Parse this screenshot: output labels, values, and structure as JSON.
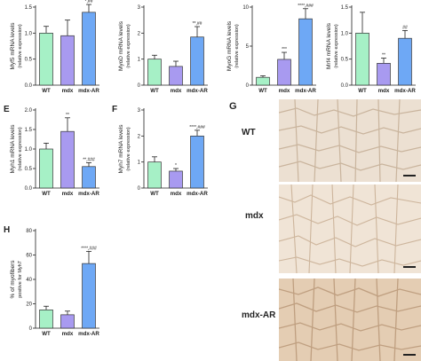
{
  "chart_data": [
    {
      "id": "A",
      "panel_letter": "",
      "type": "bar",
      "categories": [
        "WT",
        "mdx",
        "mdx-AR"
      ],
      "values": [
        1.0,
        0.95,
        1.4
      ],
      "errors": [
        0.13,
        0.3,
        0.15
      ],
      "ylabel": "Myf5 mRNA levels",
      "ylabel2": "(relative expression)",
      "ylim": [
        0,
        1.5
      ],
      "yticks": [
        "0.0",
        "0.5",
        "1.0",
        "1.5"
      ],
      "significance": [
        "",
        "",
        "*,##"
      ],
      "colors": [
        "#a6f0c6",
        "#a89af0",
        "#6ea8f5"
      ]
    },
    {
      "id": "B",
      "panel_letter": "",
      "type": "bar",
      "categories": [
        "WT",
        "mdx",
        "mdx-AR"
      ],
      "values": [
        1.0,
        0.72,
        1.85
      ],
      "errors": [
        0.15,
        0.2,
        0.4
      ],
      "ylabel": "MyoD mRNA levels",
      "ylabel2": "(relative expression)",
      "ylim": [
        0,
        3
      ],
      "yticks": [
        "0",
        "1",
        "2",
        "3"
      ],
      "significance": [
        "",
        "",
        "**,##"
      ],
      "colors": [
        "#a6f0c6",
        "#a89af0",
        "#6ea8f5"
      ]
    },
    {
      "id": "C",
      "panel_letter": "",
      "type": "bar",
      "categories": [
        "WT",
        "mdx",
        "mdx-AR"
      ],
      "values": [
        1.0,
        3.3,
        8.5
      ],
      "errors": [
        0.2,
        0.9,
        1.3
      ],
      "ylabel": "MyoG mRNA levels",
      "ylabel2": "(relative expression)",
      "ylim": [
        0,
        10
      ],
      "yticks": [
        "0",
        "5",
        "10"
      ],
      "significance": [
        "",
        "***",
        "****,###"
      ],
      "colors": [
        "#a6f0c6",
        "#a89af0",
        "#6ea8f5"
      ]
    },
    {
      "id": "D",
      "panel_letter": "",
      "type": "bar",
      "categories": [
        "WT",
        "mdx",
        "mdx-AR"
      ],
      "values": [
        1.0,
        0.42,
        0.9
      ],
      "errors": [
        0.4,
        0.1,
        0.15
      ],
      "ylabel": "Mrf4 mRNA levels",
      "ylabel2": "(relative expression)",
      "ylim": [
        0,
        1.5
      ],
      "yticks": [
        "0.0",
        "0.5",
        "1.0",
        "1.5"
      ],
      "significance": [
        "",
        "**",
        "##"
      ],
      "colors": [
        "#a6f0c6",
        "#a89af0",
        "#6ea8f5"
      ]
    },
    {
      "id": "E",
      "panel_letter": "E",
      "type": "bar",
      "categories": [
        "WT",
        "mdx",
        "mdx-AR"
      ],
      "values": [
        1.0,
        1.45,
        0.55
      ],
      "errors": [
        0.15,
        0.35,
        0.1
      ],
      "ylabel": "Myh1 mRNA levels",
      "ylabel2": "(relative expression)",
      "ylim": [
        0,
        2
      ],
      "yticks": [
        "0.0",
        "0.5",
        "1.0",
        "1.5",
        "2.0"
      ],
      "significance": [
        "",
        "**",
        "**,###"
      ],
      "colors": [
        "#a6f0c6",
        "#a89af0",
        "#6ea8f5"
      ]
    },
    {
      "id": "F",
      "panel_letter": "F",
      "type": "bar",
      "categories": [
        "WT",
        "mdx",
        "mdx-AR"
      ],
      "values": [
        1.0,
        0.65,
        2.0
      ],
      "errors": [
        0.2,
        0.1,
        0.22
      ],
      "ylabel": "Myh7 mRNA levels",
      "ylabel2": "(relative expression)",
      "ylim": [
        0,
        3
      ],
      "yticks": [
        "0",
        "1",
        "2",
        "3"
      ],
      "significance": [
        "",
        "*",
        "****,###"
      ],
      "colors": [
        "#a6f0c6",
        "#a89af0",
        "#6ea8f5"
      ]
    },
    {
      "id": "H",
      "panel_letter": "H",
      "type": "bar",
      "categories": [
        "WT",
        "mdx",
        "mdx-AR"
      ],
      "values": [
        15,
        11,
        53
      ],
      "errors": [
        3,
        3,
        10
      ],
      "ylabel": "% of myofibers",
      "ylabel2": "positive for Myh7",
      "ylim": [
        0,
        80
      ],
      "yticks": [
        "0",
        "20",
        "40",
        "60",
        "80"
      ],
      "significance": [
        "",
        "",
        "****,###"
      ],
      "colors": [
        "#a6f0c6",
        "#a89af0",
        "#6ea8f5"
      ]
    }
  ],
  "histology": {
    "panel_letter": "G",
    "rows": [
      "WT",
      "mdx",
      "mdx-AR"
    ]
  }
}
